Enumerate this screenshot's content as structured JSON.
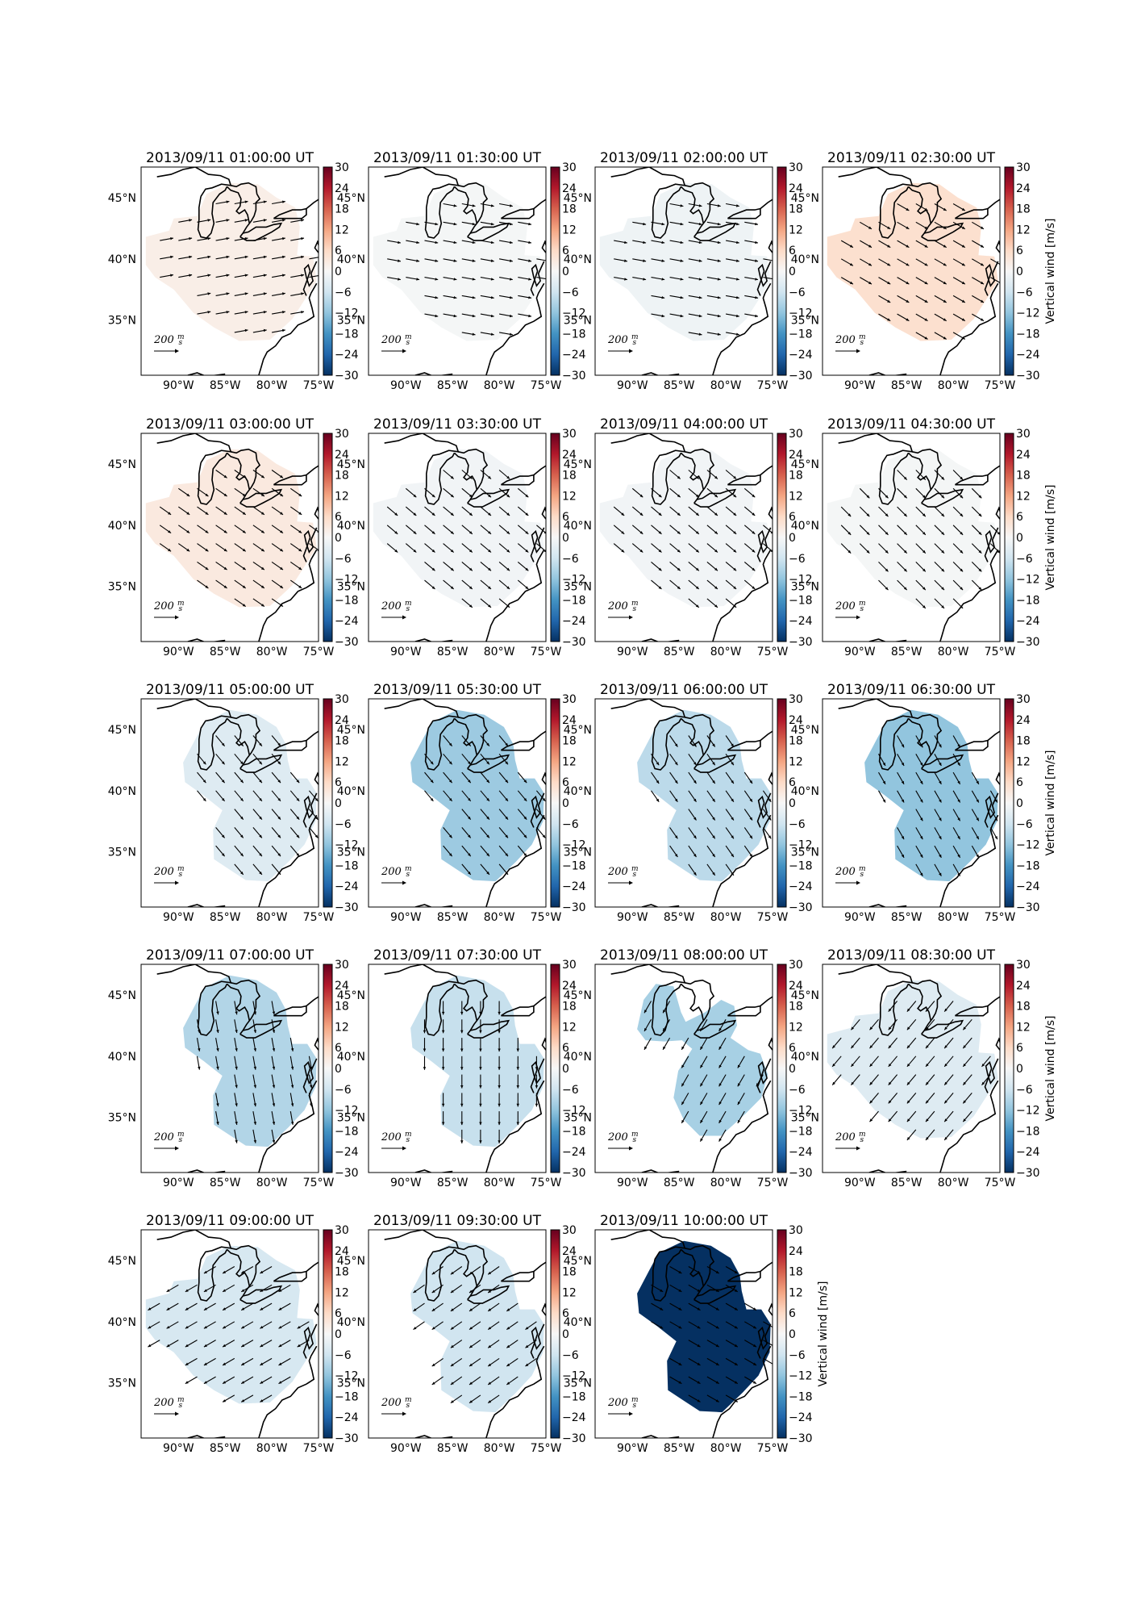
{
  "figure": {
    "type": "map-panels",
    "region": "Eastern United States / Great Lakes",
    "quiver_scale_label": "200",
    "quiver_scale_unit": "m/s",
    "quiver_scale_unit_num": "m",
    "quiver_scale_unit_den": "s",
    "colorbar_label": "Vertical wind [m/s]",
    "colormap": "RdBu_r",
    "colormap_stops": [
      "#053061",
      "#2166ac",
      "#4393c3",
      "#92c5de",
      "#d1e5f0",
      "#f7f7f7",
      "#fddbc7",
      "#f4a582",
      "#d6604d",
      "#b2182b",
      "#67001f"
    ]
  },
  "chart_data": {
    "type": "heatmap",
    "title": "",
    "xlabel": "",
    "ylabel": "",
    "lon_range": [
      -94,
      -75
    ],
    "lat_range": [
      30.5,
      47.5
    ],
    "xticks": [
      -90,
      -85,
      -80,
      -75
    ],
    "xtick_labels": [
      "90°W",
      "85°W",
      "80°W",
      "75°W"
    ],
    "yticks": [
      35,
      40,
      45
    ],
    "ytick_labels": [
      "35°N",
      "40°N",
      "45°N"
    ],
    "colorbar_ticks": [
      30,
      24,
      18,
      12,
      6,
      0,
      -6,
      -12,
      -18,
      -24,
      -30
    ],
    "colorbar_tick_labels": [
      "30",
      "24",
      "18",
      "12",
      "6",
      "0",
      "−6",
      "−12",
      "−18",
      "−24",
      "−30"
    ],
    "colorbar_range": [
      -30,
      30
    ],
    "panels": [
      {
        "title": "2013/09/11 01:00:00 UT",
        "vertical_wind": 2,
        "shape": "wide",
        "wind_dir_deg": 10
      },
      {
        "title": "2013/09/11 01:30:00 UT",
        "vertical_wind": -0.5,
        "shape": "wide",
        "wind_dir_deg": -10
      },
      {
        "title": "2013/09/11 02:00:00 UT",
        "vertical_wind": -1.5,
        "shape": "wide",
        "wind_dir_deg": -10
      },
      {
        "title": "2013/09/11 02:30:00 UT",
        "vertical_wind": 5,
        "shape": "wide",
        "wind_dir_deg": -30
      },
      {
        "title": "2013/09/11 03:00:00 UT",
        "vertical_wind": 3,
        "shape": "wide",
        "wind_dir_deg": -35
      },
      {
        "title": "2013/09/11 03:30:00 UT",
        "vertical_wind": -1,
        "shape": "wide",
        "wind_dir_deg": -40
      },
      {
        "title": "2013/09/11 04:00:00 UT",
        "vertical_wind": -1,
        "shape": "wide",
        "wind_dir_deg": -40
      },
      {
        "title": "2013/09/11 04:30:00 UT",
        "vertical_wind": -0.5,
        "shape": "wide",
        "wind_dir_deg": -45
      },
      {
        "title": "2013/09/11 05:00:00 UT",
        "vertical_wind": -4,
        "shape": "narrow",
        "wind_dir_deg": -50
      },
      {
        "title": "2013/09/11 05:30:00 UT",
        "vertical_wind": -11,
        "shape": "narrow",
        "wind_dir_deg": -50
      },
      {
        "title": "2013/09/11 06:00:00 UT",
        "vertical_wind": -8,
        "shape": "narrow",
        "wind_dir_deg": -55
      },
      {
        "title": "2013/09/11 06:30:00 UT",
        "vertical_wind": -12,
        "shape": "narrow",
        "wind_dir_deg": -60
      },
      {
        "title": "2013/09/11 07:00:00 UT",
        "vertical_wind": -9,
        "shape": "narrow",
        "wind_dir_deg": -80
      },
      {
        "title": "2013/09/11 07:30:00 UT",
        "vertical_wind": -7,
        "shape": "narrow",
        "wind_dir_deg": -90
      },
      {
        "title": "2013/09/11 08:00:00 UT",
        "vertical_wind": -10,
        "shape": "split",
        "wind_dir_deg": -120
      },
      {
        "title": "2013/09/11 08:30:00 UT",
        "vertical_wind": -4,
        "shape": "wide",
        "wind_dir_deg": -130
      },
      {
        "title": "2013/09/11 09:00:00 UT",
        "vertical_wind": -5,
        "shape": "wide",
        "wind_dir_deg": -150
      },
      {
        "title": "2013/09/11 09:30:00 UT",
        "vertical_wind": -6,
        "shape": "narrow",
        "wind_dir_deg": -145
      },
      {
        "title": "2013/09/11 10:00:00 UT",
        "vertical_wind": -30,
        "shape": "narrow",
        "wind_dir_deg": -30
      }
    ]
  }
}
